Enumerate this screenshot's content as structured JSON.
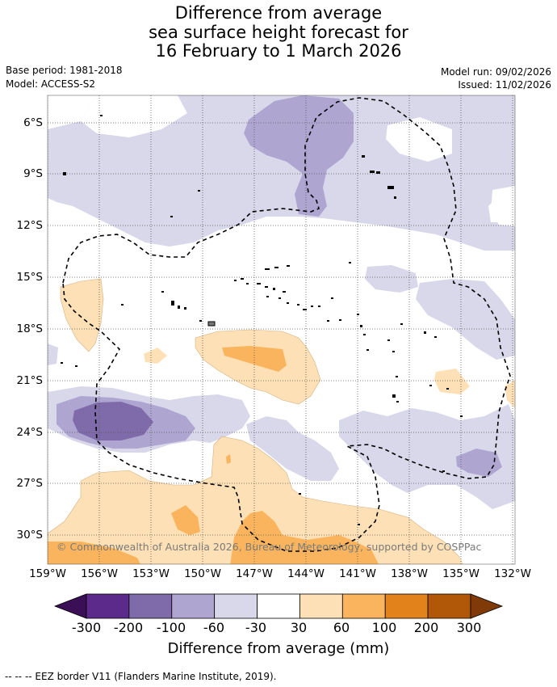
{
  "title": {
    "line1": "Difference from average",
    "line2": "sea surface height forecast for",
    "line3": "16 February to 1 March 2026"
  },
  "meta": {
    "base_period": "Base period: 1981-2018",
    "model": "Model: ACCESS-S2",
    "model_run": "Model run: 09/02/2026",
    "issued": "Issued: 11/02/2026"
  },
  "map": {
    "lat_labels": [
      "6°S",
      "9°S",
      "12°S",
      "15°S",
      "18°S",
      "21°S",
      "24°S",
      "27°S",
      "30°S"
    ],
    "lon_labels": [
      "159°W",
      "156°W",
      "153°W",
      "150°W",
      "147°W",
      "144°W",
      "141°W",
      "138°W",
      "135°W",
      "132°W"
    ],
    "copyright": "© Commonwealth of Australia 2026, Bureau of Meteorology, supported by COSPPac"
  },
  "colorbar": {
    "ticks": [
      "-300",
      "-200",
      "-100",
      "-60",
      "-30",
      "30",
      "60",
      "100",
      "200",
      "300"
    ],
    "colors": [
      "#3b0f55",
      "#5c2a8a",
      "#7f6aaa",
      "#aea6d1",
      "#d8d8ea",
      "#ffffff",
      "#fde0b5",
      "#fab45d",
      "#e2821a",
      "#b05708",
      "#7f3a08"
    ],
    "title": "Difference from average (mm)"
  },
  "footer": {
    "legend_text": "--  --  -- EEZ border V11 (Flanders Marine Institute, 2019)."
  }
}
